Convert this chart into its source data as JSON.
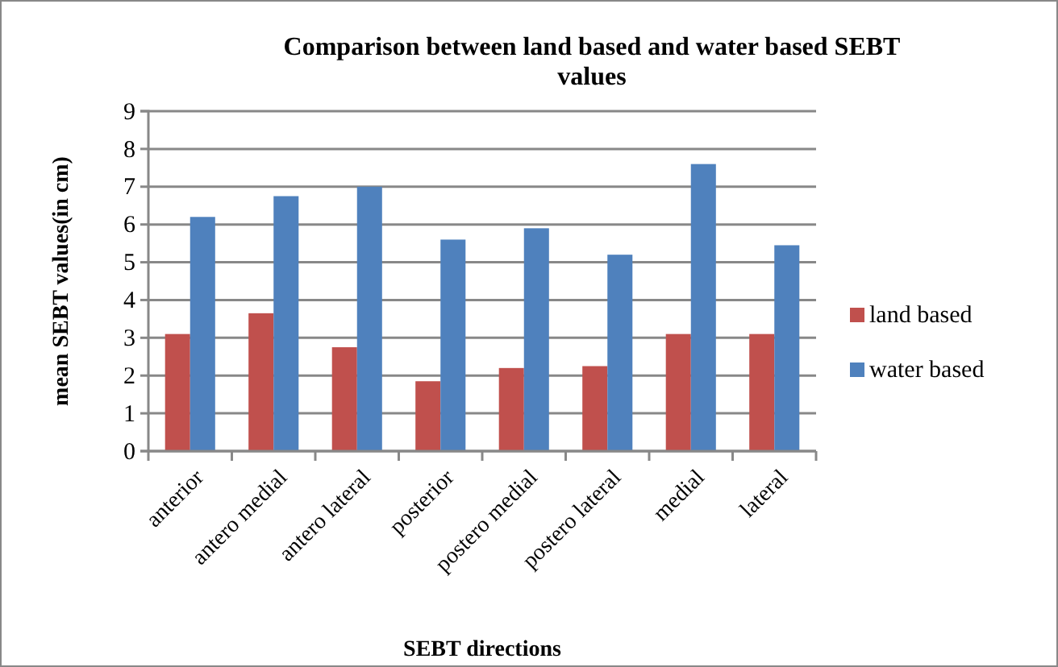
{
  "chart_data": {
    "type": "bar",
    "title": "Comparison between land based and water based  SEBT values",
    "xlabel": "SEBT directions",
    "ylabel": "mean SEBT values(in cm)",
    "categories": [
      "anterior",
      "antero medial",
      "antero lateral",
      "posterior",
      "postero medial",
      "postero lateral",
      "medial",
      "lateral"
    ],
    "series": [
      {
        "name": "land based",
        "color": "#c0504d",
        "values": [
          3.1,
          3.65,
          2.75,
          1.85,
          2.2,
          2.25,
          3.1,
          3.1
        ]
      },
      {
        "name": "water based",
        "color": "#4f81bd",
        "values": [
          6.2,
          6.75,
          7.0,
          5.6,
          5.9,
          5.2,
          7.6,
          5.45
        ]
      }
    ],
    "ylim": [
      0,
      9
    ],
    "yticks": [
      0,
      1,
      2,
      3,
      4,
      5,
      6,
      7,
      8,
      9
    ],
    "grid": "y",
    "legend": "right"
  }
}
